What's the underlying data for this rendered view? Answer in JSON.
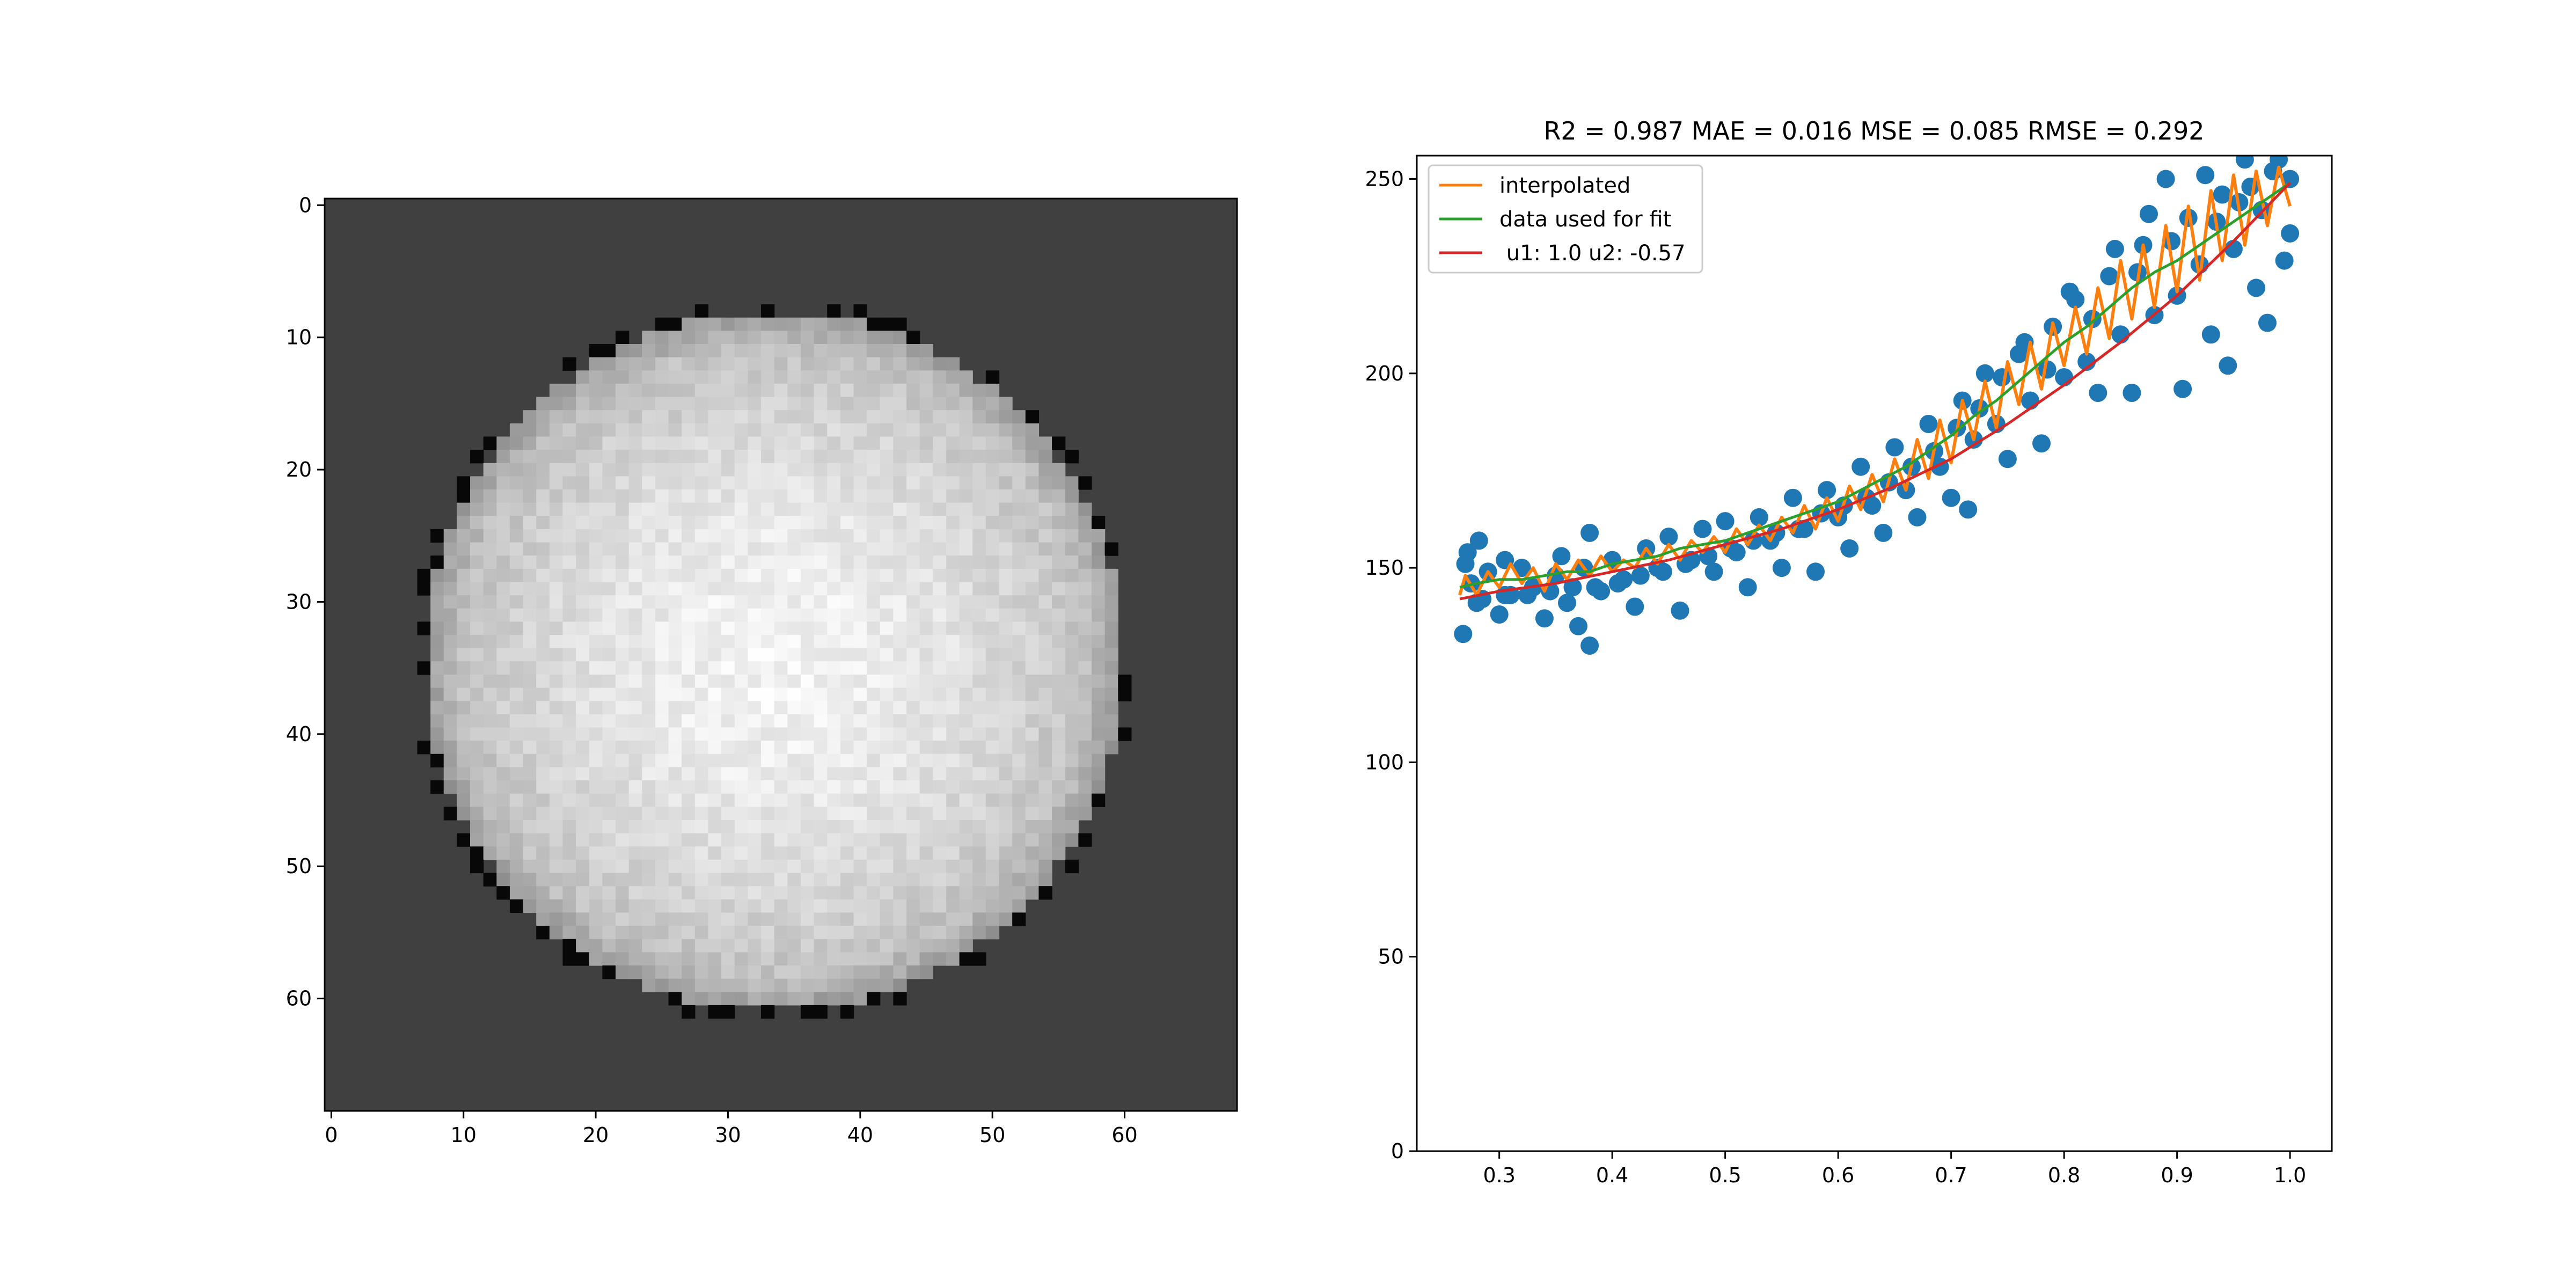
{
  "colors": {
    "background": "#ffffff",
    "image_background": "#404040",
    "scatter": "#1f77b4",
    "interpolated": "#ff7f0e",
    "fit_data": "#2ca02c",
    "model": "#d62728",
    "axis": "#000000"
  },
  "chart_data": [
    {
      "type": "heatmap",
      "title": "",
      "colormap": "gray",
      "xlim": [
        -0.5,
        68.5
      ],
      "ylim": [
        68.5,
        -0.5
      ],
      "x_ticks": [
        0,
        10,
        20,
        30,
        40,
        50,
        60
      ],
      "y_ticks": [
        0,
        10,
        20,
        30,
        40,
        50,
        60
      ],
      "x_tick_labels": [
        "0",
        "10",
        "20",
        "30",
        "40",
        "50",
        "60"
      ],
      "y_tick_labels": [
        "0",
        "10",
        "20",
        "30",
        "40",
        "50",
        "60"
      ],
      "grid": false,
      "content": {
        "shape": "disk",
        "center": [
          33.5,
          34.5
        ],
        "radius": 26.5,
        "background_level": 64,
        "center_level": 242,
        "edge_level": 180,
        "rim_level": 8
      }
    },
    {
      "type": "scatter",
      "title": "R2 = 0.987 MAE = 0.016 MSE = 0.085 RMSE = 0.292",
      "xlabel": "",
      "ylabel": "",
      "xlim": [
        0.227,
        1.037
      ],
      "ylim": [
        0,
        256
      ],
      "x_ticks": [
        0.3,
        0.4,
        0.5,
        0.6,
        0.7,
        0.8,
        0.9,
        1.0
      ],
      "y_ticks": [
        0,
        50,
        100,
        150,
        200,
        250
      ],
      "x_tick_labels": [
        "0.3",
        "0.4",
        "0.5",
        "0.6",
        "0.7",
        "0.8",
        "0.9",
        "1.0"
      ],
      "y_tick_labels": [
        "0",
        "50",
        "100",
        "150",
        "200",
        "250"
      ],
      "grid": false,
      "legend_position": "upper-left",
      "series": [
        {
          "name": "interpolated",
          "kind": "line",
          "color": "#ff7f0e",
          "points": [
            [
              0.265,
              143
            ],
            [
              0.27,
              148
            ],
            [
              0.28,
              143
            ],
            [
              0.29,
              149
            ],
            [
              0.3,
              145
            ],
            [
              0.31,
              151
            ],
            [
              0.32,
              146
            ],
            [
              0.33,
              150
            ],
            [
              0.34,
              144
            ],
            [
              0.35,
              151
            ],
            [
              0.36,
              147
            ],
            [
              0.37,
              152
            ],
            [
              0.38,
              148
            ],
            [
              0.39,
              153
            ],
            [
              0.4,
              149
            ],
            [
              0.41,
              152
            ],
            [
              0.42,
              150
            ],
            [
              0.43,
              155
            ],
            [
              0.44,
              151
            ],
            [
              0.45,
              156
            ],
            [
              0.46,
              152
            ],
            [
              0.47,
              157
            ],
            [
              0.48,
              154
            ],
            [
              0.49,
              158
            ],
            [
              0.5,
              154
            ],
            [
              0.51,
              160
            ],
            [
              0.52,
              156
            ],
            [
              0.53,
              161
            ],
            [
              0.54,
              157
            ],
            [
              0.55,
              163
            ],
            [
              0.56,
              159
            ],
            [
              0.57,
              166
            ],
            [
              0.58,
              160
            ],
            [
              0.59,
              168
            ],
            [
              0.6,
              162
            ],
            [
              0.61,
              171
            ],
            [
              0.62,
              165
            ],
            [
              0.63,
              174
            ],
            [
              0.64,
              167
            ],
            [
              0.65,
              178
            ],
            [
              0.66,
              170
            ],
            [
              0.67,
              183
            ],
            [
              0.68,
              173
            ],
            [
              0.69,
              188
            ],
            [
              0.7,
              177
            ],
            [
              0.71,
              193
            ],
            [
              0.72,
              183
            ],
            [
              0.73,
              198
            ],
            [
              0.74,
              186
            ],
            [
              0.75,
              203
            ],
            [
              0.76,
              192
            ],
            [
              0.77,
              208
            ],
            [
              0.78,
              196
            ],
            [
              0.79,
              213
            ],
            [
              0.8,
              202
            ],
            [
              0.81,
              217
            ],
            [
              0.82,
              205
            ],
            [
              0.83,
              222
            ],
            [
              0.84,
              209
            ],
            [
              0.85,
              229
            ],
            [
              0.86,
              214
            ],
            [
              0.87,
              233
            ],
            [
              0.88,
              217
            ],
            [
              0.89,
              238
            ],
            [
              0.9,
              221
            ],
            [
              0.91,
              243
            ],
            [
              0.92,
              224
            ],
            [
              0.93,
              247
            ],
            [
              0.94,
              229
            ],
            [
              0.95,
              251
            ],
            [
              0.96,
              233
            ],
            [
              0.97,
              252
            ],
            [
              0.98,
              238
            ],
            [
              0.99,
              253
            ],
            [
              1.0,
              243
            ]
          ]
        },
        {
          "name": "data used for fit",
          "kind": "line",
          "color": "#2ca02c",
          "points": [
            [
              0.265,
              145
            ],
            [
              0.28,
              146
            ],
            [
              0.3,
              147
            ],
            [
              0.32,
              147
            ],
            [
              0.34,
              148
            ],
            [
              0.36,
              149
            ],
            [
              0.38,
              149
            ],
            [
              0.4,
              151
            ],
            [
              0.42,
              152
            ],
            [
              0.44,
              153
            ],
            [
              0.46,
              155
            ],
            [
              0.48,
              156
            ],
            [
              0.5,
              157
            ],
            [
              0.52,
              159
            ],
            [
              0.54,
              161
            ],
            [
              0.56,
              163
            ],
            [
              0.58,
              165
            ],
            [
              0.6,
              167
            ],
            [
              0.62,
              170
            ],
            [
              0.64,
              173
            ],
            [
              0.66,
              176
            ],
            [
              0.68,
              180
            ],
            [
              0.7,
              184
            ],
            [
              0.72,
              189
            ],
            [
              0.74,
              193
            ],
            [
              0.76,
              198
            ],
            [
              0.78,
              203
            ],
            [
              0.8,
              208
            ],
            [
              0.82,
              212
            ],
            [
              0.84,
              217
            ],
            [
              0.86,
              222
            ],
            [
              0.88,
              226
            ],
            [
              0.9,
              229
            ],
            [
              0.92,
              233
            ],
            [
              0.94,
              237
            ],
            [
              0.96,
              241
            ],
            [
              0.98,
              245
            ],
            [
              1.0,
              249
            ]
          ]
        },
        {
          "name": " u1: 1.0 u2: -0.57",
          "kind": "line",
          "color": "#d62728",
          "points": [
            [
              0.265,
              142
            ],
            [
              0.3,
              144
            ],
            [
              0.35,
              146
            ],
            [
              0.4,
              149
            ],
            [
              0.45,
              152
            ],
            [
              0.5,
              156
            ],
            [
              0.55,
              160
            ],
            [
              0.6,
              165
            ],
            [
              0.65,
              171
            ],
            [
              0.7,
              178
            ],
            [
              0.75,
              187
            ],
            [
              0.8,
              197
            ],
            [
              0.85,
              208
            ],
            [
              0.9,
              220
            ],
            [
              0.95,
              234
            ],
            [
              1.0,
              249
            ]
          ]
        },
        {
          "kind": "scatter",
          "color": "#1f77b4",
          "points": [
            [
              0.268,
              133
            ],
            [
              0.27,
              151
            ],
            [
              0.272,
              154
            ],
            [
              0.275,
              146
            ],
            [
              0.28,
              141
            ],
            [
              0.282,
              157
            ],
            [
              0.29,
              149
            ],
            [
              0.3,
              138
            ],
            [
              0.305,
              152
            ],
            [
              0.31,
              143
            ],
            [
              0.32,
              150
            ],
            [
              0.33,
              145
            ],
            [
              0.34,
              137
            ],
            [
              0.35,
              148
            ],
            [
              0.355,
              153
            ],
            [
              0.36,
              141
            ],
            [
              0.37,
              135
            ],
            [
              0.375,
              150
            ],
            [
              0.38,
              130
            ],
            [
              0.38,
              159
            ],
            [
              0.39,
              144
            ],
            [
              0.4,
              152
            ],
            [
              0.41,
              147
            ],
            [
              0.42,
              140
            ],
            [
              0.43,
              155
            ],
            [
              0.44,
              150
            ],
            [
              0.45,
              158
            ],
            [
              0.46,
              139
            ],
            [
              0.47,
              152
            ],
            [
              0.48,
              160
            ],
            [
              0.49,
              149
            ],
            [
              0.5,
              162
            ],
            [
              0.51,
              154
            ],
            [
              0.52,
              145
            ],
            [
              0.53,
              163
            ],
            [
              0.54,
              157
            ],
            [
              0.55,
              150
            ],
            [
              0.56,
              168
            ],
            [
              0.57,
              160
            ],
            [
              0.58,
              149
            ],
            [
              0.59,
              170
            ],
            [
              0.6,
              163
            ],
            [
              0.61,
              155
            ],
            [
              0.62,
              176
            ],
            [
              0.63,
              166
            ],
            [
              0.64,
              159
            ],
            [
              0.65,
              181
            ],
            [
              0.66,
              170
            ],
            [
              0.67,
              163
            ],
            [
              0.68,
              187
            ],
            [
              0.69,
              176
            ],
            [
              0.7,
              168
            ],
            [
              0.71,
              193
            ],
            [
              0.715,
              165
            ],
            [
              0.72,
              183
            ],
            [
              0.73,
              200
            ],
            [
              0.74,
              187
            ],
            [
              0.75,
              178
            ],
            [
              0.76,
              205
            ],
            [
              0.77,
              193
            ],
            [
              0.78,
              182
            ],
            [
              0.79,
              212
            ],
            [
              0.8,
              199
            ],
            [
              0.81,
              219
            ],
            [
              0.82,
              203
            ],
            [
              0.83,
              195
            ],
            [
              0.84,
              225
            ],
            [
              0.85,
              210
            ],
            [
              0.86,
              195
            ],
            [
              0.87,
              233
            ],
            [
              0.88,
              215
            ],
            [
              0.89,
              250
            ],
            [
              0.9,
              220
            ],
            [
              0.905,
              196
            ],
            [
              0.91,
              240
            ],
            [
              0.92,
              228
            ],
            [
              0.93,
              210
            ],
            [
              0.94,
              246
            ],
            [
              0.945,
              202
            ],
            [
              0.95,
              232
            ],
            [
              0.96,
              255
            ],
            [
              0.97,
              222
            ],
            [
              0.975,
              242
            ],
            [
              0.98,
              213
            ],
            [
              0.99,
              255
            ],
            [
              0.995,
              229
            ],
            [
              1.0,
              236
            ],
            [
              1.0,
              250
            ],
            [
              0.985,
              252
            ],
            [
              0.965,
              248
            ],
            [
              0.955,
              244
            ],
            [
              0.935,
              239
            ],
            [
              0.925,
              251
            ],
            [
              0.895,
              234
            ],
            [
              0.875,
              241
            ],
            [
              0.865,
              226
            ],
            [
              0.845,
              232
            ],
            [
              0.825,
              214
            ],
            [
              0.805,
              221
            ],
            [
              0.785,
              201
            ],
            [
              0.765,
              208
            ],
            [
              0.745,
              199
            ],
            [
              0.725,
              191
            ],
            [
              0.705,
              186
            ],
            [
              0.685,
              180
            ],
            [
              0.665,
              176
            ],
            [
              0.645,
              172
            ],
            [
              0.625,
              168
            ],
            [
              0.605,
              166
            ],
            [
              0.585,
              164
            ],
            [
              0.565,
              160
            ],
            [
              0.545,
              159
            ],
            [
              0.525,
              157
            ],
            [
              0.505,
              155
            ],
            [
              0.485,
              153
            ],
            [
              0.465,
              151
            ],
            [
              0.445,
              149
            ],
            [
              0.425,
              148
            ],
            [
              0.405,
              146
            ],
            [
              0.385,
              145
            ],
            [
              0.365,
              145
            ],
            [
              0.345,
              144
            ],
            [
              0.325,
              143
            ],
            [
              0.305,
              143
            ],
            [
              0.285,
              142
            ]
          ]
        }
      ]
    }
  ]
}
